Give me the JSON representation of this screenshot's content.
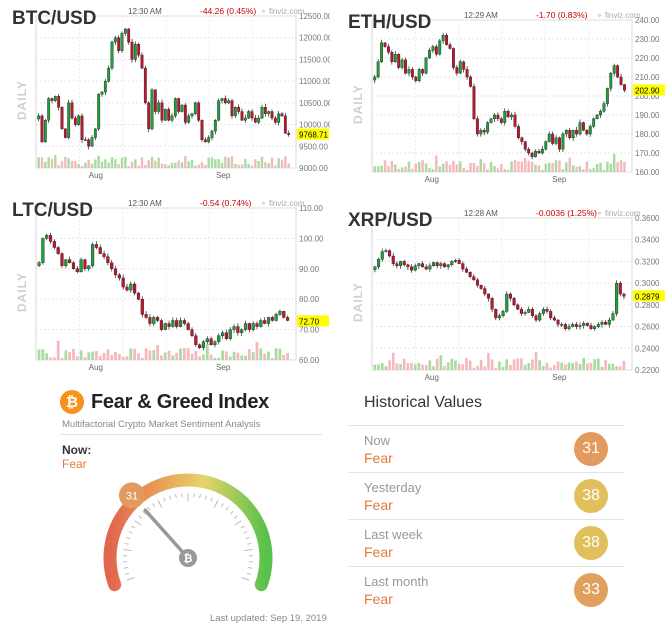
{
  "charts": [
    {
      "symbol": "BTC/USD",
      "period": "DAILY",
      "time": "12:30 AM",
      "change": "-44.26 (0.45%)",
      "source": "finviz.com",
      "last": "9768.71"
    },
    {
      "symbol": "ETH/USD",
      "period": "DAILY",
      "time": "12:29 AM",
      "change": "-1.70 (0.83%)",
      "source": "finviz.com",
      "last": "202.90"
    },
    {
      "symbol": "LTC/USD",
      "period": "DAILY",
      "time": "12:30 AM",
      "change": "-0.54 (0.74%)",
      "source": "finviz.com",
      "last": "72.70"
    },
    {
      "symbol": "XRP/USD",
      "period": "DAILY",
      "time": "12:28 AM",
      "change": "-0.0036 (1.25%)",
      "source": "finviz.com",
      "last": "0.2879"
    }
  ],
  "chart_data": [
    {
      "type": "candlestick",
      "title": "BTC/USD",
      "x_ticks": [
        "Aug",
        "Sep"
      ],
      "y_ticks": [
        "12500.00",
        "12000.00",
        "11500.00",
        "11000.00",
        "10500.00",
        "10000.00",
        "9500.00",
        "9000.00"
      ],
      "ylim": [
        9000,
        12500
      ],
      "last": 9768.71,
      "close": [
        10200,
        9600,
        10100,
        10600,
        10550,
        10650,
        10400,
        9900,
        9700,
        10500,
        10150,
        10000,
        10200,
        9650,
        9650,
        9500,
        9700,
        9900,
        10700,
        10750,
        11000,
        11300,
        11900,
        12000,
        11700,
        12100,
        12200,
        11900,
        11500,
        11850,
        11600,
        11300,
        10500,
        9900,
        10800,
        10300,
        10500,
        10100,
        10350,
        10100,
        10200,
        10600,
        10300,
        10450,
        10050,
        10200,
        10250,
        10500,
        10100,
        9650,
        9600,
        9700,
        9850,
        10100,
        10550,
        10600,
        10500,
        10550,
        10200,
        10400,
        10300,
        10100,
        10150,
        10300,
        10150,
        10050,
        10150,
        10400,
        10250,
        10300,
        10150,
        10050,
        10250,
        10200,
        9800,
        9770
      ],
      "volume_profile": "low with peaks near Aug and Sep"
    },
    {
      "type": "candlestick",
      "title": "ETH/USD",
      "x_ticks": [
        "Aug",
        "Sep"
      ],
      "y_ticks": [
        "240.00",
        "230.00",
        "220.00",
        "210.00",
        "200.00",
        "190.00",
        "180.00",
        "170.00",
        "160.00"
      ],
      "ylim": [
        160,
        240
      ],
      "last": 202.9,
      "close": [
        210,
        218,
        228,
        226,
        223,
        218,
        222,
        215,
        219,
        212,
        214,
        210,
        208,
        214,
        212,
        220,
        224,
        226,
        222,
        229,
        232,
        227,
        225,
        215,
        212,
        218,
        214,
        210,
        205,
        188,
        180,
        182,
        181,
        186,
        188,
        190,
        188,
        186,
        192,
        189,
        190,
        184,
        178,
        176,
        172,
        170,
        168,
        171,
        170,
        172,
        176,
        180,
        175,
        178,
        172,
        180,
        182,
        178,
        182,
        180,
        186,
        182,
        180,
        184,
        188,
        190,
        192,
        196,
        204,
        212,
        216,
        210,
        206,
        203
      ],
      "volume_profile": "moderate"
    },
    {
      "type": "candlestick",
      "title": "LTC/USD",
      "x_ticks": [
        "Aug",
        "Sep"
      ],
      "y_ticks": [
        "110.00",
        "100.00",
        "90.00",
        "80.00",
        "70.00",
        "60.00"
      ],
      "ylim": [
        60,
        110
      ],
      "last": 72.7,
      "close": [
        92,
        100,
        101,
        99,
        97,
        95,
        91,
        93,
        92,
        90,
        89,
        93,
        90,
        91,
        98,
        97,
        95,
        94,
        92,
        90,
        88,
        87,
        84,
        83,
        85,
        82,
        80,
        75,
        74,
        72,
        74,
        73,
        70,
        72,
        71,
        73,
        71,
        73,
        72,
        70,
        68,
        65,
        64,
        66,
        67,
        65,
        66,
        68,
        69,
        67,
        70,
        71,
        69,
        70,
        72,
        70,
        72,
        71,
        73,
        72,
        74,
        73,
        75,
        76,
        74,
        73
      ],
      "volume_profile": "low"
    },
    {
      "type": "candlestick",
      "title": "XRP/USD",
      "x_ticks": [
        "Aug",
        "Sep"
      ],
      "y_ticks": [
        "0.3600",
        "0.3400",
        "0.3200",
        "0.3000",
        "0.2800",
        "0.2600",
        "0.2400",
        "0.2200"
      ],
      "ylim": [
        0.22,
        0.36
      ],
      "last": 0.2879,
      "close": [
        0.315,
        0.322,
        0.329,
        0.33,
        0.325,
        0.318,
        0.316,
        0.32,
        0.317,
        0.315,
        0.312,
        0.316,
        0.318,
        0.315,
        0.313,
        0.316,
        0.319,
        0.316,
        0.318,
        0.315,
        0.317,
        0.32,
        0.321,
        0.318,
        0.313,
        0.31,
        0.306,
        0.303,
        0.298,
        0.295,
        0.29,
        0.286,
        0.276,
        0.268,
        0.27,
        0.274,
        0.29,
        0.286,
        0.28,
        0.276,
        0.272,
        0.273,
        0.276,
        0.27,
        0.266,
        0.272,
        0.276,
        0.274,
        0.268,
        0.266,
        0.262,
        0.262,
        0.258,
        0.26,
        0.262,
        0.26,
        0.261,
        0.263,
        0.261,
        0.258,
        0.26,
        0.262,
        0.264,
        0.262,
        0.266,
        0.272,
        0.3,
        0.29,
        0.2879
      ],
      "volume_profile": "low with spike near end"
    }
  ],
  "fear_greed": {
    "title": "Fear & Greed Index",
    "subtitle": "Multifactorial Crypto Market Sentiment Analysis",
    "now_label": "Now:",
    "now_value": "Fear",
    "gauge_value": 31,
    "gauge_label": "31",
    "last_updated": "Last updated: Sep 19, 2019"
  },
  "historical": {
    "title": "Historical Values",
    "rows": [
      {
        "label": "Now",
        "value": "Fear",
        "score": "31",
        "color": "#e39a5f"
      },
      {
        "label": "Yesterday",
        "value": "Fear",
        "score": "38",
        "color": "#dfc05c"
      },
      {
        "label": "Last week",
        "value": "Fear",
        "score": "38",
        "color": "#dfc05c"
      },
      {
        "label": "Last month",
        "value": "Fear",
        "score": "33",
        "color": "#e2a05f"
      }
    ]
  },
  "colors": {
    "up": "#1ea03a",
    "down": "#c0152a",
    "vol_up": "#a8dba0",
    "vol_down": "#f5b8bf",
    "last_box": "#ffff00",
    "change": "#cc0000"
  }
}
